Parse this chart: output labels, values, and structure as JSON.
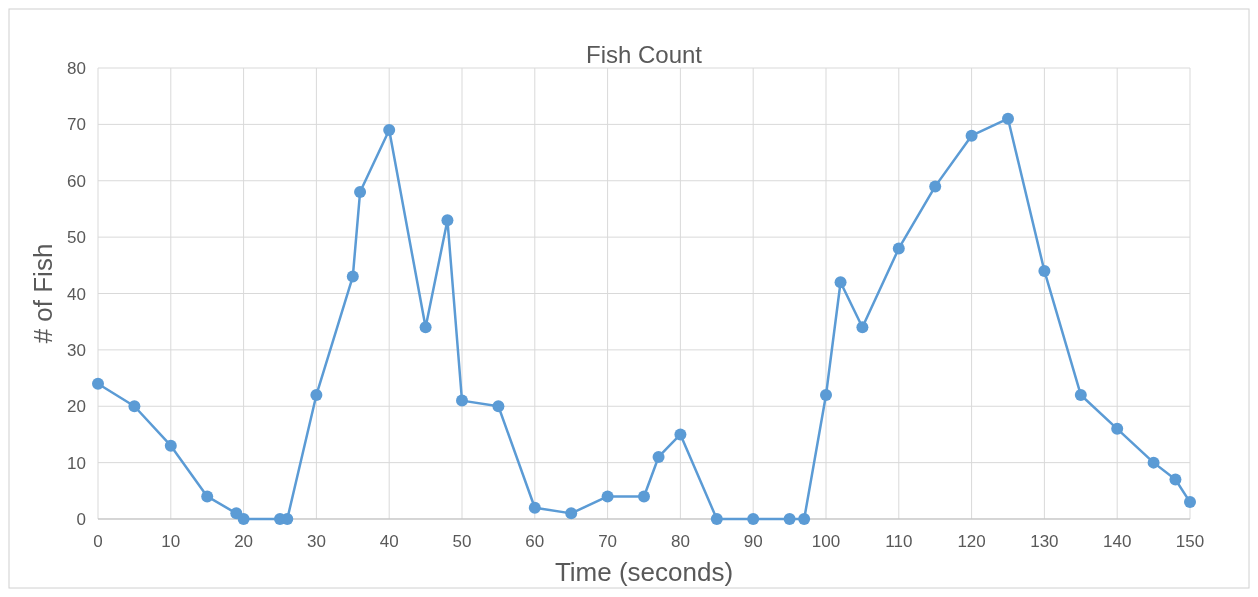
{
  "chart_data": {
    "type": "line",
    "title": "Fish Count",
    "xlabel": "Time (seconds)",
    "ylabel": "# of Fish",
    "x": [
      0,
      5,
      10,
      15,
      19,
      20,
      25,
      26,
      30,
      35,
      36,
      40,
      45,
      48,
      50,
      55,
      60,
      65,
      70,
      75,
      77,
      80,
      85,
      90,
      95,
      97,
      100,
      102,
      105,
      110,
      115,
      120,
      125,
      130,
      135,
      140,
      145,
      148,
      150
    ],
    "series": [
      {
        "color": "#5b9bd5",
        "values": [
          24,
          20,
          13,
          4,
          1,
          0,
          0,
          0,
          22,
          43,
          58,
          69,
          34,
          53,
          21,
          20,
          2,
          1,
          4,
          4,
          11,
          15,
          0,
          0,
          0,
          0,
          22,
          42,
          34,
          48,
          59,
          68,
          71,
          44,
          22,
          16,
          10,
          7,
          3
        ]
      }
    ],
    "xlim": [
      0,
      150
    ],
    "xticks": [
      0,
      10,
      20,
      30,
      40,
      50,
      60,
      70,
      80,
      90,
      100,
      110,
      120,
      130,
      140,
      150
    ],
    "ylim": [
      0,
      80
    ],
    "yticks": [
      0,
      10,
      20,
      30,
      40,
      50,
      60,
      70,
      80
    ],
    "grid": true,
    "marker": "circle",
    "line_style": "solid"
  }
}
